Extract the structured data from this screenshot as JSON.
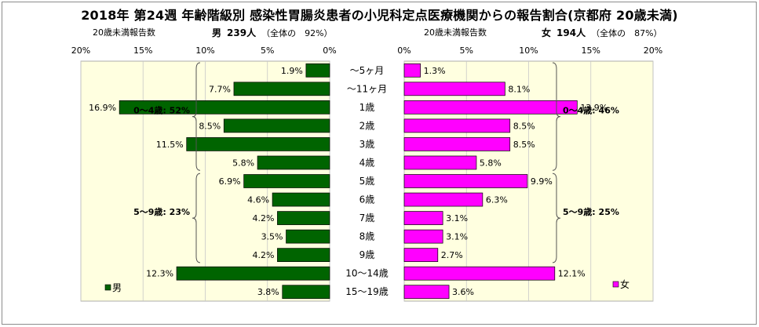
{
  "title": "2018年 第24週 年齢階級別 感染性胃腸炎患者の小児科定点医療機関からの報告割合(京都府 20歳未満)",
  "left_header": {
    "caption": "20歳未満報告数",
    "sex": "男",
    "count": "239人",
    "share": "（全体の　92%）"
  },
  "right_header": {
    "caption": "20歳未満報告数",
    "sex": "女",
    "count": "194人",
    "share": "（全体の　87%）"
  },
  "chart_data": {
    "type": "bar",
    "orientation": "horizontal-butterfly",
    "categories": [
      "～5ヶ月",
      "～11ヶ月",
      "1歳",
      "2歳",
      "3歳",
      "4歳",
      "5歳",
      "6歳",
      "7歳",
      "8歳",
      "9歳",
      "10～14歳",
      "15～19歳"
    ],
    "series": [
      {
        "name": "男",
        "color": "#006400",
        "values": [
          1.9,
          7.7,
          16.9,
          8.5,
          11.5,
          5.8,
          6.9,
          4.6,
          4.2,
          3.5,
          4.2,
          12.3,
          3.8
        ],
        "labels": [
          "1.9%",
          "7.7%",
          "16.9%",
          "8.5%",
          "11.5%",
          "5.8%",
          "6.9%",
          "4.6%",
          "4.2%",
          "3.5%",
          "4.2%",
          "12.3%",
          "3.8%"
        ]
      },
      {
        "name": "女",
        "color": "#ff00ff",
        "values": [
          1.3,
          8.1,
          13.9,
          8.5,
          8.5,
          5.8,
          9.9,
          6.3,
          3.1,
          3.1,
          2.7,
          12.1,
          3.6
        ],
        "labels": [
          "1.3%",
          "8.1%",
          "13.9%",
          "8.5%",
          "8.5%",
          "5.8%",
          "9.9%",
          "6.3%",
          "3.1%",
          "3.1%",
          "2.7%",
          "12.1%",
          "3.6%"
        ]
      }
    ],
    "xlim": [
      0,
      20
    ],
    "left_ticks": [
      "20%",
      "15%",
      "10%",
      "5%",
      "0%"
    ],
    "right_ticks": [
      "0%",
      "5%",
      "10%",
      "15%",
      "20%"
    ],
    "grid": true,
    "plot_background": "#ffffe0",
    "annotations": {
      "male": [
        {
          "text": "0～4歳: 52%",
          "from": 0,
          "to": 5
        },
        {
          "text": "5～9歳: 23%",
          "from": 6,
          "to": 10
        }
      ],
      "female": [
        {
          "text": "0～4歳: 46%",
          "from": 0,
          "to": 5
        },
        {
          "text": "5～9歳: 25%",
          "from": 6,
          "to": 10
        }
      ]
    },
    "legend": {
      "male": "男",
      "female": "女"
    }
  }
}
